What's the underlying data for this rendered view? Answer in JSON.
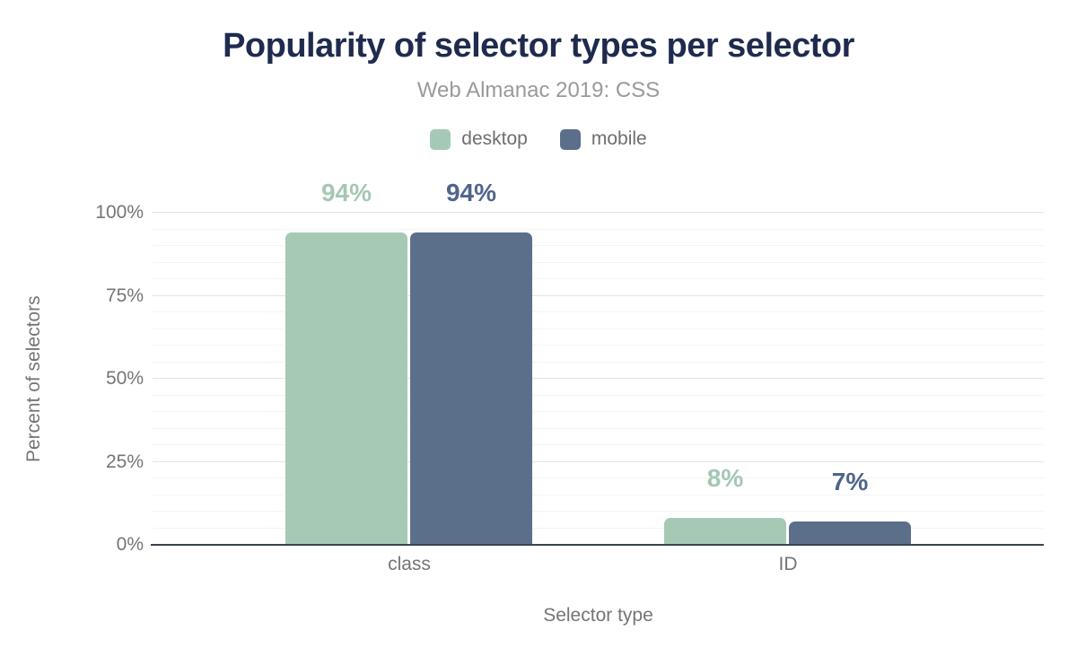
{
  "title": "Popularity of selector types per selector",
  "subtitle": "Web Almanac 2019: CSS",
  "colors": {
    "title": "#1f2b4e",
    "subtitle": "#9a9a9a",
    "legend_text": "#6e6e6e",
    "axis_text": "#757575",
    "baseline": "#3a434d",
    "grid_major": "#e4e4e7",
    "grid_minor": "#f4f4f6",
    "desktop": "#a6c9b6",
    "mobile": "#5c6f8a"
  },
  "axes": {
    "y_title": "Percent of selectors",
    "x_title": "Selector type",
    "y_ticks": [
      {
        "label": "0%",
        "value": 0
      },
      {
        "label": "25%",
        "value": 25
      },
      {
        "label": "50%",
        "value": 50
      },
      {
        "label": "75%",
        "value": 75
      },
      {
        "label": "100%",
        "value": 100
      }
    ]
  },
  "chart_data": {
    "type": "bar",
    "title": "Popularity of selector types per selector",
    "subtitle": "Web Almanac 2019: CSS",
    "categories": [
      "class",
      "ID"
    ],
    "series": [
      {
        "name": "desktop",
        "values": [
          94,
          8
        ],
        "labels": [
          "94%",
          "8%"
        ],
        "color": "#a6c9b6",
        "label_color": "#a4c7b4"
      },
      {
        "name": "mobile",
        "values": [
          94,
          7
        ],
        "labels": [
          "94%",
          "7%"
        ],
        "color": "#5c6f8a",
        "label_color": "#4f648a"
      }
    ],
    "xlabel": "Selector type",
    "ylabel": "Percent of selectors",
    "ylim": [
      0,
      100
    ],
    "y_tick_step": 25,
    "minor_grid_step": 5,
    "grid": true,
    "legend_position": "top"
  }
}
